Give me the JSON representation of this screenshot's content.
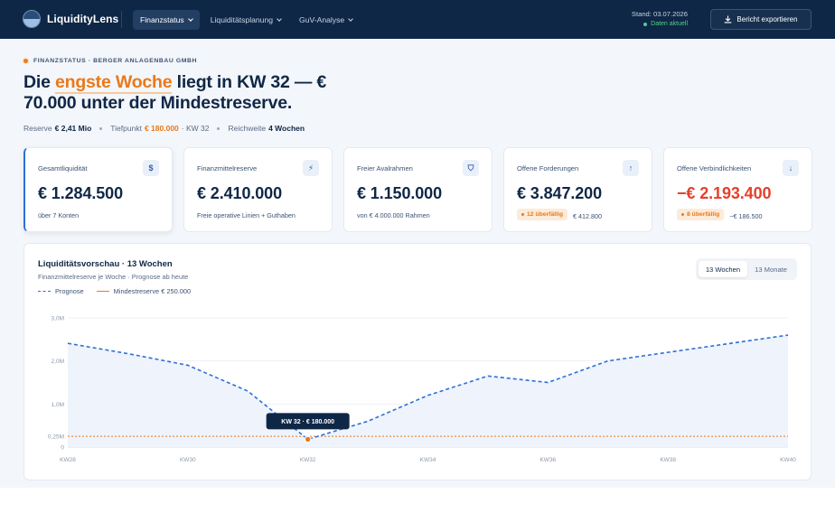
{
  "app": {
    "name": "LiquidityLens"
  },
  "nav": [
    {
      "label": "Finanzstatus",
      "active": true
    },
    {
      "label": "Liquiditätsplanung",
      "active": false
    },
    {
      "label": "GuV-Analyse",
      "active": false
    }
  ],
  "status": {
    "date": "Stand: 03.07.2026",
    "state": "Daten aktuell"
  },
  "toolbar": {
    "export_label": "Bericht exportieren"
  },
  "hero": {
    "eyebrow": "FINANZSTATUS · BERGER ANLAGENBAU GMBH",
    "headline_pre": "Die ",
    "headline_highlight": "engste Woche",
    "headline_post": " liegt in KW 32 — € 70.000 unter der Mindestreserve.",
    "reserve_label": "Reserve",
    "reserve_value": "€ 2,41 Mio",
    "low_label": "Tiefpunkt",
    "low_value": "€ 180.000",
    "low_week": "· KW 32",
    "reach_label": "Reichweite",
    "reach_value": "4 Wochen"
  },
  "kpis": [
    {
      "title": "Gesamtliquidität",
      "icon": "euro-icon",
      "glyph": "$",
      "value": "€ 1.284.500",
      "sub": "über 7 Konten",
      "badge": "",
      "negative": false
    },
    {
      "title": "Finanzmittelreserve",
      "icon": "bolt-icon",
      "glyph": "⚡",
      "value": "€ 2.410.000",
      "sub": "Freie operative Linien + Guthaben",
      "badge": "",
      "negative": false
    },
    {
      "title": "Freier Avalrahmen",
      "icon": "shield-icon",
      "glyph": "⛉",
      "value": "€ 1.150.000",
      "sub": "von € 4.000.000 Rahmen",
      "badge": "",
      "negative": false
    },
    {
      "title": "Offene Forderungen",
      "icon": "arrow-up-icon",
      "glyph": "↑",
      "value": "€ 3.847.200",
      "sub": "€ 412.800",
      "badge": "12 überfällig",
      "negative": false
    },
    {
      "title": "Offene Verbindlichkeiten",
      "icon": "arrow-down-icon",
      "glyph": "↓",
      "value": "−€ 2.193.400",
      "sub": "−€ 186.500",
      "badge": "8 überfällig",
      "negative": true
    }
  ],
  "panel": {
    "title": "Liquiditätsvorschau · 13 Wochen",
    "subtitle": "Finanzmittelreserve je Woche · Prognose ab heute",
    "legend_forecast": "Prognose",
    "legend_min": "Mindestreserve € 250.000",
    "range_options": [
      "13 Wochen",
      "13 Monate"
    ],
    "range_selected": "13 Wochen"
  },
  "colors": {
    "navy": "#0f2746",
    "accent": "#2f6fd6",
    "orange": "#e9791a",
    "negative": "#e5402b",
    "success": "#4fd08a"
  },
  "chart_data": {
    "type": "line",
    "x": [
      "KW 28",
      "KW 29",
      "KW 30",
      "KW 31",
      "KW 32",
      "KW 33",
      "KW 34",
      "KW 35",
      "KW 36",
      "KW 37",
      "KW 38",
      "KW 39",
      "KW 40"
    ],
    "xticks": [
      "KW 28",
      "KW 30",
      "KW 32",
      "KW 34",
      "KW 36",
      "KW 38",
      "KW 40"
    ],
    "yticks": [
      0,
      0.25,
      1.0,
      2.0,
      3.0
    ],
    "ytick_labels": [
      "0",
      "0,25M",
      "1,0M",
      "2,0M",
      "3,0M"
    ],
    "ylim": [
      0,
      3.0
    ],
    "series": [
      {
        "name": "Prognose",
        "values": [
          2.41,
          2.17,
          1.9,
          1.3,
          0.18,
          0.6,
          1.2,
          1.65,
          1.5,
          2.0,
          2.2,
          2.4,
          2.6
        ]
      }
    ],
    "threshold": {
      "name": "Mindestreserve € 250.000",
      "value": 0.25
    },
    "highlight": {
      "index": 4,
      "label": "KW 32 · € 180.000"
    },
    "grid": true
  }
}
